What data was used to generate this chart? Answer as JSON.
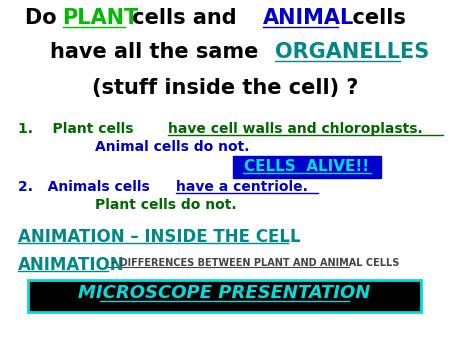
{
  "bg_color": "#ffffff",
  "fs_title": 15,
  "fs_body": 10,
  "fs_anim1": 12,
  "fs_anim2_big": 12,
  "fs_anim2_small": 7,
  "fs_micro": 13,
  "title_line1": [
    {
      "text": "Do ",
      "color": "#000000",
      "ul": false
    },
    {
      "text": "PLANT",
      "color": "#00bb00",
      "ul": true
    },
    {
      "text": " cells and ",
      "color": "#000000",
      "ul": false
    },
    {
      "text": "ANIMAL",
      "color": "#0000cc",
      "ul": true
    },
    {
      "text": "  cells",
      "color": "#000000",
      "ul": false
    }
  ],
  "title_line2": [
    {
      "text": "have all the same ",
      "color": "#000000",
      "ul": false
    },
    {
      "text": "ORGANELLES",
      "color": "#008888",
      "ul": true
    }
  ],
  "title_line3": "(stuff inside the cell) ?",
  "title_line3_color": "#000000",
  "item1a_prefix": "1.    Plant cells ",
  "item1a_ul": "have cell walls and chloroplasts.",
  "item1a_color": "#006600",
  "item1b": "Animal cells do not.",
  "item1b_color": "#0000cc",
  "cells_alive_text": "CELLS  ALIVE!!",
  "cells_alive_fg": "#00dddd",
  "cells_alive_bg": "#0000cc",
  "item2a_prefix": "2.   Animals cells ",
  "item2a_ul": "have a centriole.",
  "item2a_color": "#0000cc",
  "item2b": "Plant cells do not.",
  "item2b_color": "#006600",
  "anim1_text": "ANIMATION – INSIDE THE CELL",
  "anim1_color": "#008888",
  "anim2_big": "ANIMATION",
  "anim2_big_color": "#008888",
  "anim2_small": " – DIFFERENCES BETWEEN PLANT AND ANIMAL CELLS",
  "anim2_small_color": "#444444",
  "micro_text": "MICROSCOPE PRESENTATION",
  "micro_fg": "#00dddd",
  "micro_bg": "#000000",
  "micro_border": "#00dddd"
}
